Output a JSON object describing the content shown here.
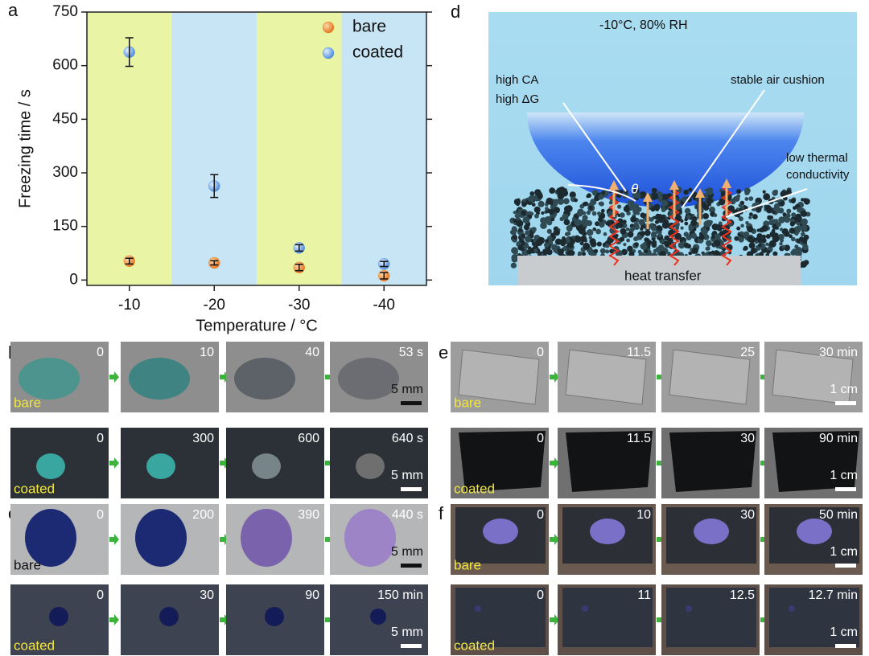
{
  "chart_data": {
    "type": "scatter",
    "panel_label": "a",
    "x_label": "Temperature / °C",
    "y_label": "Freezing time / s",
    "categories": [
      "-10",
      "-20",
      "-30",
      "-40"
    ],
    "series": [
      {
        "name": "bare",
        "color": "#f08a2a",
        "values": [
          53,
          48,
          35,
          12
        ],
        "errors": [
          8,
          6,
          9,
          9
        ]
      },
      {
        "name": "coated",
        "color": "#5b9be0",
        "values": [
          638,
          263,
          90,
          45
        ],
        "errors": [
          40,
          32,
          9,
          7
        ]
      }
    ],
    "ylim": [
      -15,
      750
    ],
    "yticks": [
      0,
      150,
      300,
      450,
      600,
      750
    ],
    "band_colors": [
      "#e9f5a4",
      "#c8e5f5"
    ],
    "legend": "top-right",
    "grid": false
  },
  "diagram": {
    "panel_label": "d",
    "condition": "-10°C, 80% RH",
    "contact_angle": "high CA",
    "energy": "high ΔG",
    "theta": "θ",
    "cushion": "stable air cushion",
    "thermal_1": "low thermal",
    "thermal_2": "conductivity",
    "substrate": "heat transfer"
  },
  "photo_panels": [
    {
      "label": "b",
      "rows": [
        {
          "sample": "bare",
          "times": [
            "0",
            "10",
            "40",
            "53 s"
          ],
          "scale": "5 mm"
        },
        {
          "sample": "coated",
          "times": [
            "0",
            "300",
            "600",
            "640 s"
          ],
          "scale": "5 mm"
        }
      ]
    },
    {
      "label": "c",
      "rows": [
        {
          "sample": "bare",
          "times": [
            "0",
            "200",
            "390",
            "440 s"
          ],
          "scale": "5 mm"
        },
        {
          "sample": "coated",
          "times": [
            "0",
            "30",
            "90",
            "150 min"
          ],
          "scale": "5 mm"
        }
      ]
    },
    {
      "label": "e",
      "rows": [
        {
          "sample": "bare",
          "times": [
            "0",
            "11.5",
            "25",
            "30 min"
          ],
          "scale": "1 cm"
        },
        {
          "sample": "coated",
          "times": [
            "0",
            "11.5",
            "30",
            "90 min"
          ],
          "scale": "1 cm"
        }
      ]
    },
    {
      "label": "f",
      "rows": [
        {
          "sample": "bare",
          "times": [
            "0",
            "10",
            "30",
            "50 min"
          ],
          "scale": "1 cm"
        },
        {
          "sample": "coated",
          "times": [
            "0",
            "11",
            "12.5",
            "12.7 min"
          ],
          "scale": "1 cm"
        }
      ]
    }
  ]
}
